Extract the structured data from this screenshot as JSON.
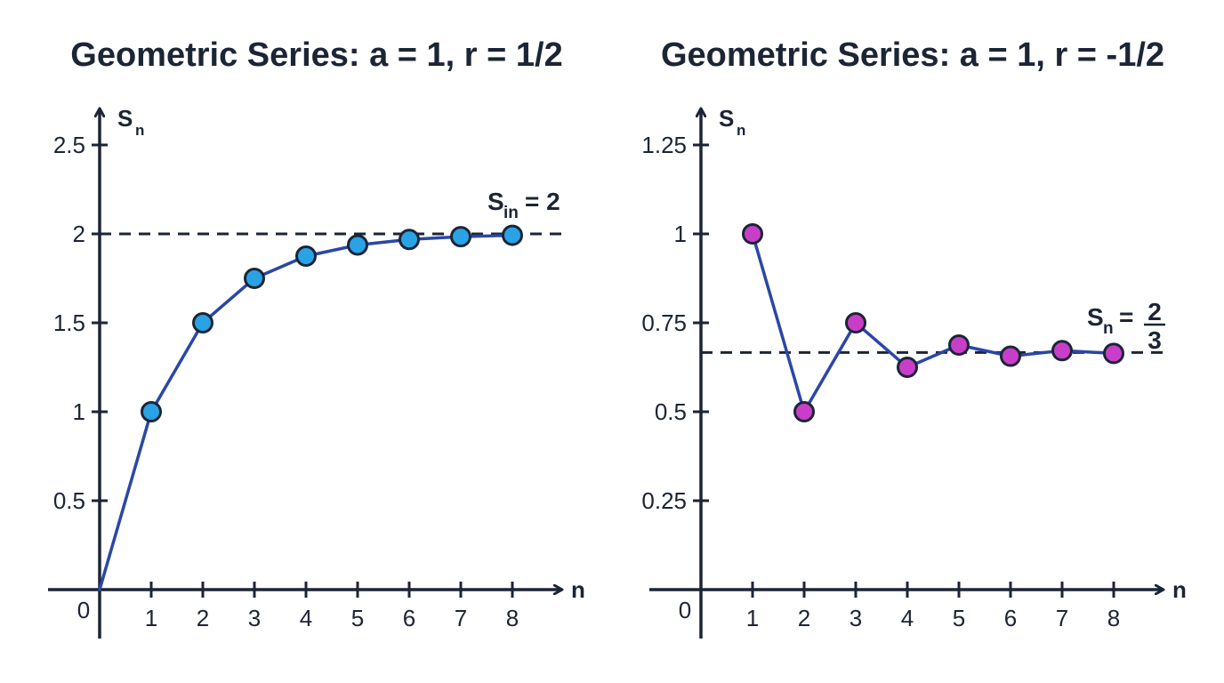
{
  "colors": {
    "axis": "#1b2535",
    "line": "#2a47a6",
    "point_outline": "#1b2535"
  },
  "chart_data": [
    {
      "type": "line",
      "title": "Geometric Series: a = 1, r = 1/2",
      "ylabel": "S",
      "ylabel_sub": "n",
      "xlabel": "n",
      "ylim": [
        0,
        2.5
      ],
      "xlim": [
        0,
        8
      ],
      "grid": false,
      "x_ticks": [
        "1",
        "2",
        "3",
        "4",
        "5",
        "6",
        "7",
        "8"
      ],
      "y_ticks": [
        "0.5",
        "1",
        "1.5",
        "2",
        "2.5"
      ],
      "origin_label": "0",
      "series": [
        {
          "color": "#2a47a6",
          "marker_color": "#29a3e6",
          "x": [
            0,
            1,
            2,
            3,
            4,
            5,
            6,
            7,
            8
          ],
          "values": [
            0,
            1,
            1.5,
            1.75,
            1.875,
            1.9375,
            1.96875,
            1.984375,
            1.9921875
          ],
          "marker_from_index": 1
        }
      ],
      "reference_line": {
        "y": 2,
        "style": "dashed",
        "label_main": "S",
        "label_sub": "in",
        "label_rest": "= 2"
      }
    },
    {
      "type": "line",
      "title": "Geometric Series: a = 1, r = -1/2",
      "ylabel": "S",
      "ylabel_sub": "n",
      "xlabel": "n",
      "ylim": [
        0,
        1.25
      ],
      "xlim": [
        0,
        8
      ],
      "grid": false,
      "x_ticks": [
        "1",
        "2",
        "3",
        "4",
        "5",
        "6",
        "7",
        "8"
      ],
      "y_ticks": [
        "0.25",
        "0.5",
        "0.75",
        "1",
        "1.25"
      ],
      "origin_label": "0",
      "series": [
        {
          "color": "#2a47a6",
          "marker_color": "#c93ec9",
          "x": [
            1,
            2,
            3,
            4,
            5,
            6,
            7,
            8
          ],
          "values": [
            1,
            0.5,
            0.75,
            0.625,
            0.6875,
            0.65625,
            0.671875,
            0.6640625
          ],
          "marker_from_index": 0
        }
      ],
      "reference_line": {
        "y": 0.6667,
        "style": "dashed",
        "label_main": "S",
        "label_sub": "n",
        "label_rest": "=",
        "label_num": "2",
        "label_den": "3"
      }
    }
  ]
}
